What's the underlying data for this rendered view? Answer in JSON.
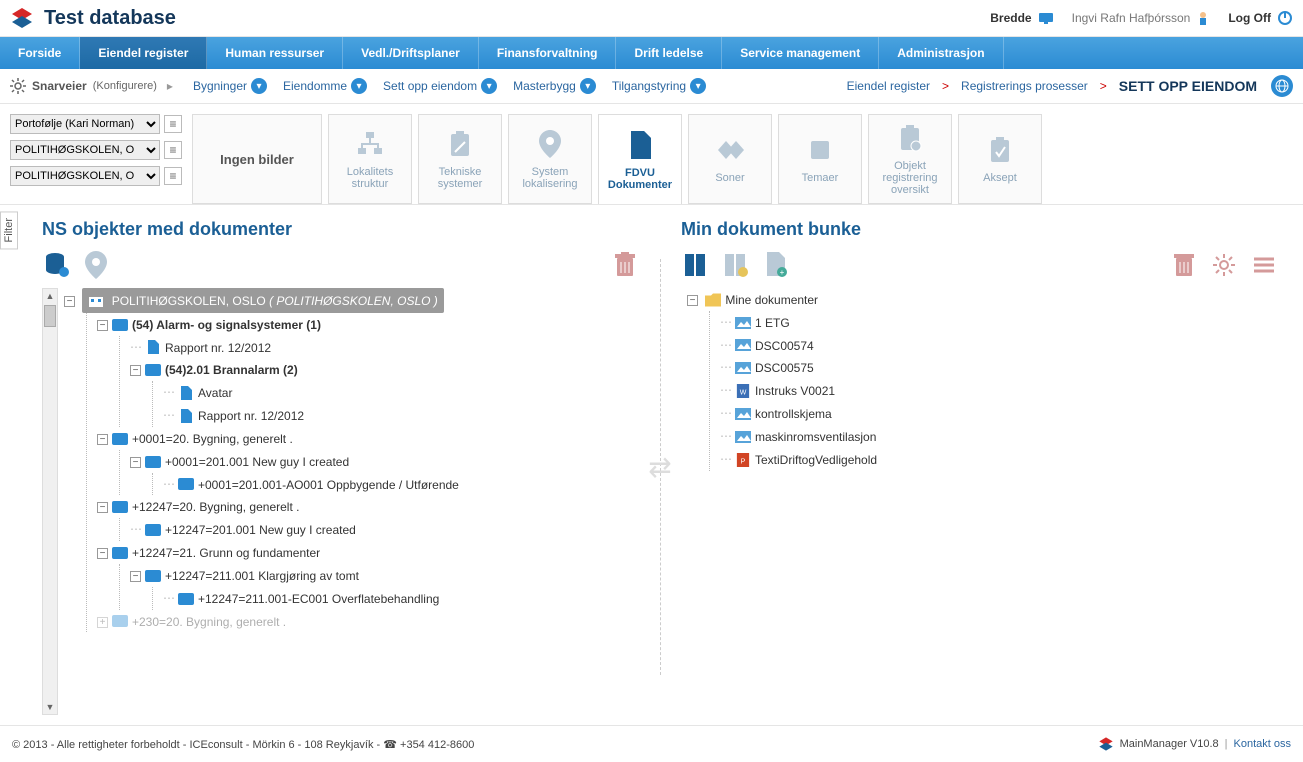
{
  "header": {
    "app_title": "Test database",
    "bredde_label": "Bredde",
    "user_name": "Ingvi Rafn Hafþórsson",
    "logoff_label": "Log Off"
  },
  "mainnav": {
    "tabs": [
      {
        "label": "Forside"
      },
      {
        "label": "Eiendel register",
        "active": true
      },
      {
        "label": "Human ressurser"
      },
      {
        "label": "Vedl./Driftsplaner"
      },
      {
        "label": "Finansforvaltning"
      },
      {
        "label": "Drift ledelse"
      },
      {
        "label": "Service management"
      },
      {
        "label": "Administrasjon"
      }
    ]
  },
  "subbar": {
    "shortcuts_label": "Snarveier",
    "shortcuts_config": "Konfigurere",
    "chips": [
      {
        "label": "Bygninger"
      },
      {
        "label": "Eiendomme"
      },
      {
        "label": "Sett opp eiendom"
      },
      {
        "label": "Masterbygg"
      },
      {
        "label": "Tilgangstyring"
      }
    ],
    "crumbs": [
      {
        "label": "Eiendel register"
      },
      {
        "label": "Registrerings prosesser"
      }
    ],
    "crumb_current": "SETT OPP EIENDOM"
  },
  "dropdowns": [
    {
      "value": "Portofølje (Kari Norman)"
    },
    {
      "value": "POLITIHØGSKOLEN, O"
    },
    {
      "value": "POLITIHØGSKOLEN, O"
    }
  ],
  "tiles": [
    {
      "label": "Ingen bilder",
      "wide": true
    },
    {
      "label": "Lokalitets struktur"
    },
    {
      "label": "Tekniske systemer"
    },
    {
      "label": "System lokalisering"
    },
    {
      "label": "FDVU Dokumenter",
      "active": true
    },
    {
      "label": "Soner"
    },
    {
      "label": "Temaer"
    },
    {
      "label": "Objekt registrering oversikt"
    },
    {
      "label": "Aksept"
    }
  ],
  "left_panel": {
    "title": "NS objekter med dokumenter",
    "root": {
      "label": "POLITIHØGSKOLEN, OSLO",
      "label_italic": "( POLITIHØGSKOLEN, OSLO )"
    },
    "items": {
      "n1": "(54) Alarm- og signalsystemer (1)",
      "n1a": "Rapport nr. 12/2012",
      "n2": "(54)2.01 Brannalarm (2)",
      "n2a": "Avatar",
      "n2b": "Rapport nr. 12/2012",
      "n3": "+0001=20. Bygning, generelt .",
      "n3a": "+0001=201.001 New guy I created",
      "n3b": "+0001=201.001-AO001 Oppbygende / Utførende",
      "n4": "+12247=20. Bygning, generelt .",
      "n4a": "+12247=201.001 New guy I created",
      "n5": "+12247=21. Grunn og fundamenter",
      "n5a": "+12247=211.001 Klargjøring av tomt",
      "n5b": "+12247=211.001-EC001 Overflatebehandling",
      "n6": "+230=20. Bygning, generelt ."
    }
  },
  "right_panel": {
    "title": "Min dokument bunke",
    "root_label": "Mine dokumenter",
    "docs": [
      {
        "label": "1 ETG",
        "type": "img"
      },
      {
        "label": "DSC00574",
        "type": "img"
      },
      {
        "label": "DSC00575",
        "type": "img"
      },
      {
        "label": "Instruks V0021",
        "type": "doc"
      },
      {
        "label": "kontrollskjema",
        "type": "img"
      },
      {
        "label": "maskinromsventilasjon",
        "type": "img"
      },
      {
        "label": "TextiDriftogVedligehold",
        "type": "ppt"
      }
    ]
  },
  "filter_tab": "Filter",
  "footer": {
    "copyright": "© 2013 - Alle rettigheter forbeholdt - ICEconsult - Mörkin 6 - 108 Reykjavík - ☎ +354 412-8600",
    "product": "MainManager V10.8",
    "contact": "Kontakt oss"
  },
  "colors": {
    "brand_blue": "#1b5f95",
    "nav_blue": "#2b8bd3",
    "muted_icon": "#b9c9d6",
    "delete_red": "#d49a9a"
  }
}
